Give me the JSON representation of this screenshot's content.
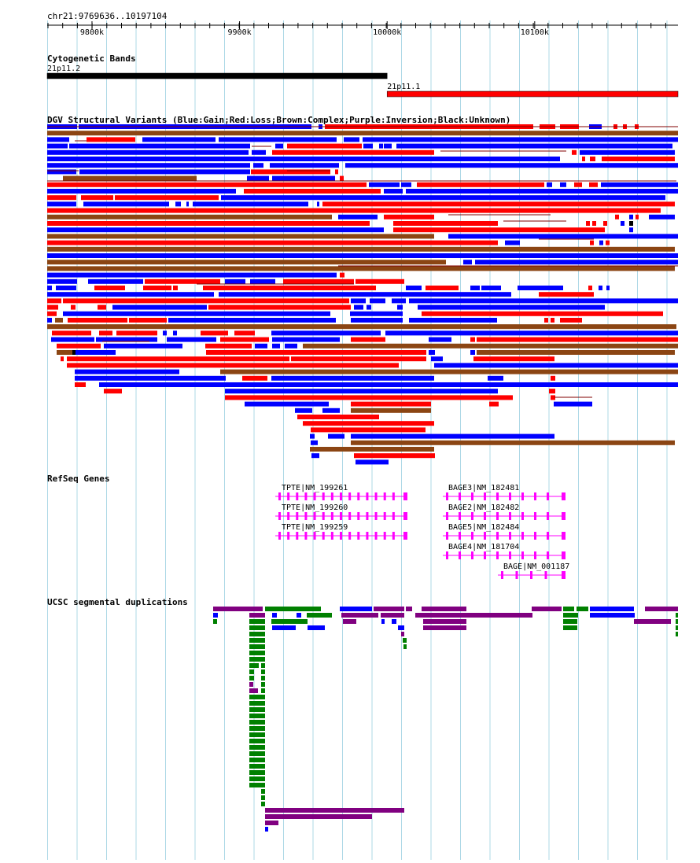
{
  "location": "chr21:9769636..10197104",
  "ruler": {
    "ticks": [
      {
        "pos": 9800000,
        "label": "9800k"
      },
      {
        "pos": 9900000,
        "label": "9900k"
      },
      {
        "pos": 10000000,
        "label": "10000k"
      },
      {
        "pos": 10100000,
        "label": "10100k"
      }
    ]
  },
  "tracks": {
    "cytoband": {
      "title": "Cytogenetic Bands",
      "bands": [
        {
          "name": "21p11.2",
          "start": 9769636,
          "end": 10000000,
          "color": "#000000"
        },
        {
          "name": "21p11.1",
          "start": 10000000,
          "end": 10197104,
          "color": "#ff0000"
        }
      ]
    },
    "dgv": {
      "title": "DGV Structural Variants (Blue:Gain;Red:Loss;Brown:Complex;Purple:Inversion;Black:Unknown)",
      "colors": {
        "gain": "#0000ff",
        "loss": "#ff0000",
        "complex": "#8b4513",
        "unknown": "#000000"
      }
    },
    "refseq": {
      "title": "RefSeq Genes",
      "color": "#ff00ff",
      "genes": [
        {
          "label": "TPTE|NM_199261"
        },
        {
          "label": "TPTE|NM_199260"
        },
        {
          "label": "TPTE|NM_199259"
        },
        {
          "label": "BAGE3|NM_182481"
        },
        {
          "label": "BAGE2|NM_182482"
        },
        {
          "label": "BAGE5|NM_182484"
        },
        {
          "label": "BAGE4|NM_181704"
        },
        {
          "label": "BAGE|NM_001187"
        }
      ]
    },
    "segdup": {
      "title": "UCSC segmental duplications",
      "colors": {
        "purple": "#800080",
        "green": "#008000",
        "blue": "#0000ff"
      }
    }
  }
}
